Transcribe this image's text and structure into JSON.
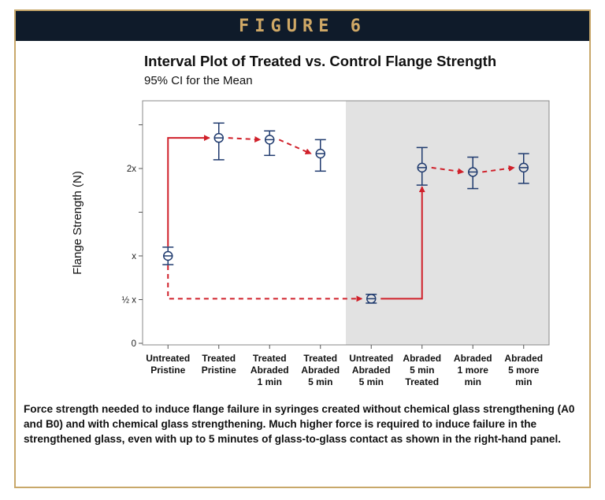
{
  "figure_label": "FIGURE 6",
  "caption": "Force strength needed to induce flange failure in syringes created without chemical glass strengthening (A0 and B0) and with chemical glass strengthening. Much higher force is required to induce failure in the strengthened glass, even with up to 5 minutes of glass-to-glass contact as shown in the right-hand panel.",
  "colors": {
    "header_bg": "#0f1b2a",
    "header_text": "#cfa866",
    "border": "#c8a86a",
    "marker": "#1f3a6e",
    "arrow": "#d0202a",
    "shaded_panel": "#e2e2e2"
  },
  "chart_data": {
    "type": "interval",
    "title": "Interval Plot of Treated vs. Control Flange Strength",
    "subtitle": "95% CI for the Mean",
    "ylabel": "Flange Strength (N)",
    "xlabel": "",
    "ylim": [
      0,
      2.4
    ],
    "y_ticks": [
      {
        "value": 0,
        "label": "0"
      },
      {
        "value": 0.5,
        "label": "½ x"
      },
      {
        "value": 1,
        "label": "x"
      },
      {
        "value": 1.5,
        "label": ""
      },
      {
        "value": 2,
        "label": "2x"
      },
      {
        "value": 2.5,
        "label": ""
      }
    ],
    "categories": [
      [
        "Untreated",
        "Pristine"
      ],
      [
        "Treated",
        "Pristine"
      ],
      [
        "Treated",
        "Abraded",
        "1 min"
      ],
      [
        "Treated",
        "Abraded",
        "5 min"
      ],
      [
        "Untreated",
        "Abraded",
        "5 min"
      ],
      [
        "Abraded",
        "5 min",
        "Treated"
      ],
      [
        "Abraded",
        "1 more",
        "min"
      ],
      [
        "Abraded",
        "5 more",
        "min"
      ]
    ],
    "means": [
      1.0,
      2.35,
      2.33,
      2.17,
      0.51,
      2.01,
      1.96,
      2.01
    ],
    "ci_lower": [
      0.9,
      2.1,
      2.15,
      1.97,
      0.46,
      1.81,
      1.77,
      1.83
    ],
    "ci_upper": [
      1.1,
      2.52,
      2.43,
      2.33,
      0.56,
      2.24,
      2.13,
      2.17
    ],
    "shaded_region_start_category": 4,
    "grid": false,
    "arrows": [
      {
        "style": "solid",
        "from": 0,
        "to": 1
      },
      {
        "style": "dashed",
        "from": 1,
        "to": 2
      },
      {
        "style": "dashed",
        "from": 2,
        "to": 3
      },
      {
        "style": "dashed",
        "from": 0,
        "to": 4
      },
      {
        "style": "solid",
        "from": 4,
        "to": 5
      },
      {
        "style": "dashed",
        "from": 5,
        "to": 6
      },
      {
        "style": "dashed",
        "from": 6,
        "to": 7
      }
    ]
  }
}
